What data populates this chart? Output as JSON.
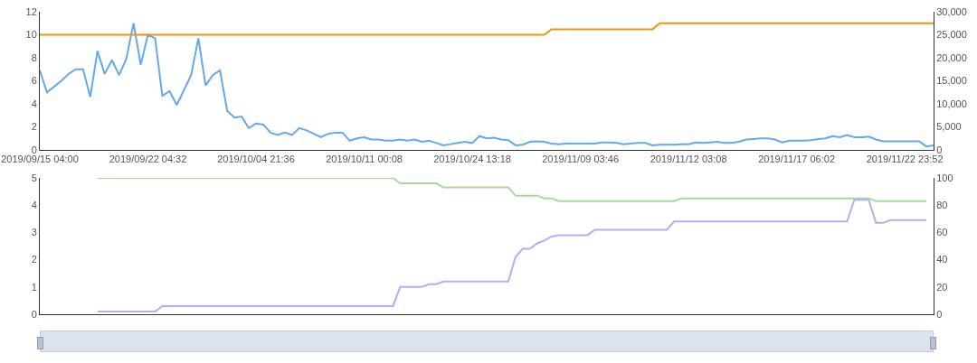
{
  "chart_data": [
    {
      "type": "line",
      "categories": [
        "2019/09/15 04:00",
        null,
        null,
        null,
        null,
        null,
        null,
        null,
        null,
        null,
        null,
        null,
        null,
        null,
        null,
        "2019/09/22 04:32",
        null,
        null,
        null,
        null,
        null,
        null,
        null,
        null,
        null,
        null,
        null,
        null,
        null,
        null,
        "2019/10/04 21:36",
        null,
        null,
        null,
        null,
        null,
        null,
        null,
        null,
        null,
        null,
        null,
        null,
        null,
        null,
        "2019/10/11 00:08",
        null,
        null,
        null,
        null,
        null,
        null,
        null,
        null,
        null,
        null,
        null,
        null,
        null,
        null,
        "2019/10/24 13:18",
        null,
        null,
        null,
        null,
        null,
        null,
        null,
        null,
        null,
        null,
        null,
        null,
        null,
        null,
        "2019/11/09 03:46",
        null,
        null,
        null,
        null,
        null,
        null,
        null,
        null,
        null,
        null,
        null,
        null,
        null,
        null,
        "2019/11/12 03:08",
        null,
        null,
        null,
        null,
        null,
        null,
        null,
        null,
        null,
        null,
        null,
        null,
        null,
        null,
        "2019/11/17 06:02",
        null,
        null,
        null,
        null,
        null,
        null,
        null,
        null,
        null,
        null,
        null,
        null,
        null,
        null,
        "2019/11/22 23:52",
        null,
        null,
        null,
        null
      ],
      "series": [
        {
          "color": "#64a8f0",
          "values": [
            6.9,
            5.0,
            5.5,
            6.0,
            6.6,
            7.0,
            7.0,
            4.6,
            8.6,
            6.6,
            7.8,
            6.5,
            7.9,
            11.0,
            7.4,
            10.0,
            9.7,
            4.7,
            5.1,
            3.9,
            5.2,
            6.5,
            9.7,
            5.6,
            6.5,
            6.9,
            3.4,
            2.8,
            2.9,
            1.9,
            2.3,
            2.2,
            1.5,
            1.3,
            1.5,
            1.3,
            1.9,
            1.7,
            1.4,
            1.1,
            1.4,
            1.5,
            1.5,
            0.8,
            1.0,
            1.1,
            0.9,
            0.9,
            0.8,
            0.8,
            0.9,
            0.8,
            0.9,
            0.7,
            0.8,
            0.6,
            0.4,
            0.5,
            0.6,
            0.7,
            0.6,
            1.2,
            1.0,
            1.05,
            0.9,
            0.85,
            0.4,
            0.45,
            0.7,
            0.75,
            0.7,
            0.55,
            0.5,
            0.55,
            0.55,
            0.55,
            0.55,
            0.55,
            0.65,
            0.65,
            0.6,
            0.5,
            0.55,
            0.6,
            0.6,
            0.4,
            0.45,
            0.45,
            0.45,
            0.5,
            0.5,
            0.65,
            0.6,
            0.65,
            0.7,
            0.6,
            0.6,
            0.7,
            0.9,
            0.95,
            1.0,
            1.0,
            0.9,
            0.65,
            0.8,
            0.8,
            0.8,
            0.85,
            0.95,
            1.0,
            1.2,
            1.1,
            1.3,
            1.1,
            1.1,
            1.15,
            0.9,
            0.75,
            0.75,
            0.75,
            0.75,
            0.75,
            0.75,
            0.3,
            0.4
          ]
        },
        {
          "color": "#f0940a",
          "axis": "y2",
          "values": [
            25000,
            25000,
            25000,
            25000,
            25000,
            25000,
            25000,
            25000,
            25000,
            25000,
            25000,
            25000,
            25000,
            25000,
            25000,
            25000,
            25000,
            25000,
            25000,
            25000,
            25000,
            25000,
            25000,
            25000,
            25000,
            25000,
            25000,
            25000,
            25000,
            25000,
            25000,
            25000,
            25000,
            25000,
            25000,
            25000,
            25000,
            25000,
            25000,
            25000,
            25000,
            25000,
            25000,
            25000,
            25000,
            25000,
            25000,
            25000,
            25000,
            25000,
            25000,
            25000,
            25000,
            25000,
            25000,
            25000,
            25000,
            25000,
            25000,
            25000,
            25000,
            25000,
            25000,
            25000,
            25000,
            25000,
            25000,
            25000,
            25000,
            25000,
            25000,
            26200,
            26200,
            26200,
            26200,
            26200,
            26200,
            26200,
            26200,
            26200,
            26200,
            26200,
            26200,
            26200,
            26200,
            26200,
            27500,
            27500,
            27500,
            27500,
            27500,
            27500,
            27500,
            27500,
            27500,
            27500,
            27500,
            27500,
            27500,
            27500,
            27500,
            27500,
            27500,
            27500,
            27500,
            27500,
            27500,
            27500,
            27500,
            27500,
            27500,
            27500,
            27500,
            27500,
            27500,
            27500,
            27500,
            27500,
            27500,
            27500,
            27500,
            27500,
            27500,
            27500,
            27500
          ]
        }
      ],
      "ylim": [
        0,
        12
      ],
      "yticks": [
        0,
        2,
        4,
        6,
        8,
        10,
        12
      ],
      "y2lim": [
        0,
        30000
      ],
      "y2ticks": [
        0,
        {
          "value": 5000,
          "label": "5,000"
        },
        {
          "value": 10000,
          "label": "10,000"
        },
        {
          "value": 15000,
          "label": "15,000"
        },
        {
          "value": 20000,
          "label": "20,000"
        },
        {
          "value": 25000,
          "label": "25,000"
        },
        {
          "value": 30000,
          "label": "30,000"
        }
      ]
    },
    {
      "type": "line",
      "categories": [
        "2019/09/15 04:00",
        null,
        null,
        null,
        null,
        null,
        null,
        null,
        null,
        null,
        null,
        null,
        null,
        null,
        null,
        "2019/09/22 04:32",
        null,
        null,
        null,
        null,
        null,
        null,
        null,
        null,
        null,
        null,
        null,
        null,
        null,
        null,
        "2019/10/04 21:36",
        null,
        null,
        null,
        null,
        null,
        null,
        null,
        null,
        null,
        null,
        null,
        null,
        null,
        null,
        "2019/10/11 00:08",
        null,
        null,
        null,
        null,
        null,
        null,
        null,
        null,
        null,
        null,
        null,
        null,
        null,
        null,
        "2019/10/24 13:18",
        null,
        null,
        null,
        null,
        null,
        null,
        null,
        null,
        null,
        null,
        null,
        null,
        null,
        null,
        "2019/11/09 03:46",
        null,
        null,
        null,
        null,
        null,
        null,
        null,
        null,
        null,
        null,
        null,
        null,
        null,
        null,
        "2019/11/12 03:08",
        null,
        null,
        null,
        null,
        null,
        null,
        null,
        null,
        null,
        null,
        null,
        null,
        null,
        null,
        "2019/11/17 06:02",
        null,
        null,
        null,
        null,
        null,
        null,
        null,
        null,
        null,
        null,
        null,
        null,
        null,
        null,
        "2019/11/22 23:52",
        null,
        null,
        null,
        null
      ],
      "series": [
        {
          "color": "#a6d99a",
          "values": [
            null,
            null,
            null,
            null,
            null,
            null,
            null,
            null,
            5,
            5,
            5,
            5,
            5,
            5,
            5,
            5,
            5,
            5,
            5,
            5,
            5,
            5,
            5,
            5,
            5,
            5,
            5,
            5,
            5,
            5,
            5,
            5,
            5,
            5,
            5,
            5,
            5,
            5,
            5,
            5,
            5,
            5,
            5,
            5,
            5,
            5,
            5,
            5,
            5,
            5,
            4.8,
            4.8,
            4.8,
            4.8,
            4.8,
            4.8,
            4.65,
            4.65,
            4.65,
            4.65,
            4.65,
            4.65,
            4.65,
            4.65,
            4.65,
            4.65,
            4.35,
            4.35,
            4.35,
            4.35,
            4.25,
            4.25,
            4.15,
            4.15,
            4.15,
            4.15,
            4.15,
            4.15,
            4.15,
            4.15,
            4.15,
            4.15,
            4.15,
            4.15,
            4.15,
            4.15,
            4.15,
            4.15,
            4.15,
            4.25,
            4.25,
            4.25,
            4.25,
            4.25,
            4.25,
            4.25,
            4.25,
            4.25,
            4.25,
            4.25,
            4.25,
            4.25,
            4.25,
            4.25,
            4.25,
            4.25,
            4.25,
            4.25,
            4.25,
            4.25,
            4.25,
            4.25,
            4.25,
            4.25,
            4.25,
            4.25,
            4.15,
            4.15,
            4.15,
            4.15,
            4.15,
            4.15,
            4.15,
            4.15,
            null
          ]
        },
        {
          "color": "#a9b3f7",
          "axis": "y2",
          "values": [
            null,
            null,
            null,
            null,
            null,
            null,
            null,
            null,
            2,
            2,
            2,
            2,
            2,
            2,
            2,
            2,
            2,
            6,
            6,
            6,
            6,
            6,
            6,
            6,
            6,
            6,
            6,
            6,
            6,
            6,
            6,
            6,
            6,
            6,
            6,
            6,
            6,
            6,
            6,
            6,
            6,
            6,
            6,
            6,
            6,
            6,
            6,
            6,
            6,
            6,
            20,
            20,
            20,
            20,
            22,
            22,
            24,
            24,
            24,
            24,
            24,
            24,
            24,
            24,
            24,
            24,
            42,
            48,
            48,
            52,
            54,
            57,
            58,
            58,
            58,
            58,
            58,
            62,
            62,
            62,
            62,
            62,
            62,
            62,
            62,
            62,
            62,
            62,
            68,
            68,
            68,
            68,
            68,
            68,
            68,
            68,
            68,
            68,
            68,
            68,
            68,
            68,
            68,
            68,
            68,
            68,
            68,
            68,
            68,
            68,
            68,
            68,
            68,
            84,
            84,
            84,
            67,
            67,
            69,
            69,
            69,
            69,
            69,
            69,
            null
          ]
        }
      ],
      "ylim": [
        0,
        5
      ],
      "yticks": [
        0,
        1,
        2,
        3,
        4,
        5
      ],
      "y2lim": [
        0,
        100
      ],
      "y2ticks": [
        0,
        20,
        40,
        60,
        80,
        100
      ],
      "tick_labels": "y"
    }
  ]
}
